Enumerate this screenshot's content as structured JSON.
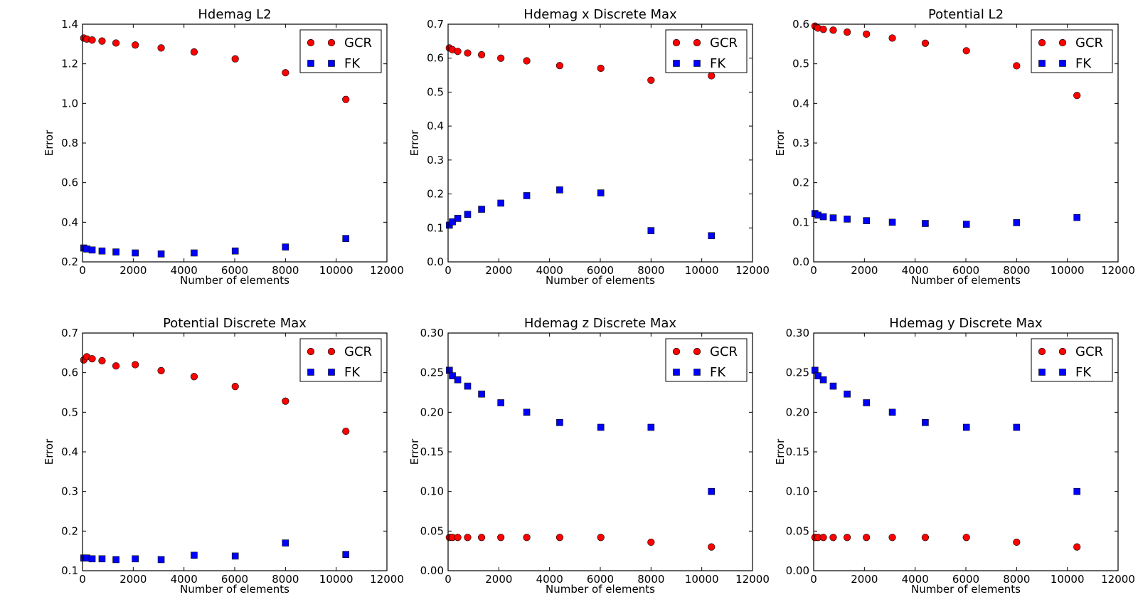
{
  "chart_data": [
    {
      "type": "scatter",
      "title": "Hdemag L2",
      "xlabel": "Number of elements",
      "ylabel": "Error",
      "xlim": [
        0,
        12000
      ],
      "ylim": [
        0.2,
        1.4
      ],
      "xticks": [
        0,
        2000,
        4000,
        6000,
        8000,
        10000,
        12000
      ],
      "yticks": [
        0.2,
        0.4,
        0.6,
        0.8,
        1.0,
        1.2,
        1.4
      ],
      "yprec": 1,
      "legend": "top-right",
      "grid": false,
      "series": [
        {
          "name": "GCR",
          "marker": "circle",
          "color": "#ff0000",
          "x": [
            50,
            170,
            380,
            770,
            1320,
            2080,
            3100,
            4400,
            6020,
            8000,
            10380
          ],
          "y": [
            1.33,
            1.325,
            1.32,
            1.315,
            1.305,
            1.295,
            1.28,
            1.26,
            1.225,
            1.155,
            1.02
          ]
        },
        {
          "name": "FK",
          "marker": "square",
          "color": "#0000ff",
          "x": [
            50,
            170,
            380,
            770,
            1320,
            2080,
            3100,
            4400,
            6020,
            8000,
            10380
          ],
          "y": [
            0.27,
            0.265,
            0.26,
            0.255,
            0.25,
            0.245,
            0.24,
            0.245,
            0.255,
            0.275,
            0.318
          ]
        }
      ]
    },
    {
      "type": "scatter",
      "title": "Hdemag x Discrete Max",
      "xlabel": "Number of elements",
      "ylabel": "Error",
      "xlim": [
        0,
        12000
      ],
      "ylim": [
        0.0,
        0.7
      ],
      "xticks": [
        0,
        2000,
        4000,
        6000,
        8000,
        10000,
        12000
      ],
      "yticks": [
        0.0,
        0.1,
        0.2,
        0.3,
        0.4,
        0.5,
        0.6,
        0.7
      ],
      "yprec": 1,
      "legend": "top-right",
      "grid": false,
      "series": [
        {
          "name": "GCR",
          "marker": "circle",
          "color": "#ff0000",
          "x": [
            50,
            170,
            380,
            770,
            1320,
            2080,
            3100,
            4400,
            6020,
            8000,
            10380
          ],
          "y": [
            0.63,
            0.625,
            0.62,
            0.615,
            0.61,
            0.6,
            0.592,
            0.578,
            0.57,
            0.535,
            0.548
          ]
        },
        {
          "name": "FK",
          "marker": "square",
          "color": "#0000ff",
          "x": [
            50,
            170,
            380,
            770,
            1320,
            2080,
            3100,
            4400,
            6020,
            8000,
            10380
          ],
          "y": [
            0.108,
            0.118,
            0.128,
            0.14,
            0.155,
            0.173,
            0.195,
            0.212,
            0.203,
            0.092,
            0.077
          ]
        }
      ]
    },
    {
      "type": "scatter",
      "title": "Potential L2",
      "xlabel": "Number of elements",
      "ylabel": "Error",
      "xlim": [
        0,
        12000
      ],
      "ylim": [
        0.0,
        0.6
      ],
      "xticks": [
        0,
        2000,
        4000,
        6000,
        8000,
        10000,
        12000
      ],
      "yticks": [
        0.0,
        0.1,
        0.2,
        0.3,
        0.4,
        0.5,
        0.6
      ],
      "yprec": 1,
      "legend": "top-right",
      "grid": false,
      "series": [
        {
          "name": "GCR",
          "marker": "circle",
          "color": "#ff0000",
          "x": [
            50,
            170,
            380,
            770,
            1320,
            2080,
            3100,
            4400,
            6020,
            8000,
            10380
          ],
          "y": [
            0.595,
            0.59,
            0.587,
            0.585,
            0.58,
            0.575,
            0.565,
            0.552,
            0.533,
            0.495,
            0.42
          ]
        },
        {
          "name": "FK",
          "marker": "square",
          "color": "#0000ff",
          "x": [
            50,
            170,
            380,
            770,
            1320,
            2080,
            3100,
            4400,
            6020,
            8000,
            10380
          ],
          "y": [
            0.122,
            0.118,
            0.114,
            0.111,
            0.108,
            0.104,
            0.1,
            0.097,
            0.095,
            0.099,
            0.112
          ]
        }
      ]
    },
    {
      "type": "scatter",
      "title": "Potential Discrete Max",
      "xlabel": "Number of elements",
      "ylabel": "Error",
      "xlim": [
        0,
        12000
      ],
      "ylim": [
        0.1,
        0.7
      ],
      "xticks": [
        0,
        2000,
        4000,
        6000,
        8000,
        10000,
        12000
      ],
      "yticks": [
        0.1,
        0.2,
        0.3,
        0.4,
        0.5,
        0.6,
        0.7
      ],
      "yprec": 1,
      "legend": "top-right",
      "grid": false,
      "series": [
        {
          "name": "GCR",
          "marker": "circle",
          "color": "#ff0000",
          "x": [
            50,
            170,
            380,
            770,
            1320,
            2080,
            3100,
            4400,
            6020,
            8000,
            10380
          ],
          "y": [
            0.632,
            0.64,
            0.635,
            0.63,
            0.617,
            0.62,
            0.605,
            0.59,
            0.565,
            0.528,
            0.452
          ]
        },
        {
          "name": "FK",
          "marker": "square",
          "color": "#0000ff",
          "x": [
            50,
            170,
            380,
            770,
            1320,
            2080,
            3100,
            4400,
            6020,
            8000,
            10380
          ],
          "y": [
            0.132,
            0.132,
            0.13,
            0.13,
            0.128,
            0.13,
            0.128,
            0.139,
            0.137,
            0.17,
            0.141
          ]
        }
      ]
    },
    {
      "type": "scatter",
      "title": "Hdemag z Discrete Max",
      "xlabel": "Number of elements",
      "ylabel": "Error",
      "xlim": [
        0,
        12000
      ],
      "ylim": [
        0.0,
        0.3
      ],
      "xticks": [
        0,
        2000,
        4000,
        6000,
        8000,
        10000,
        12000
      ],
      "yticks": [
        0.0,
        0.05,
        0.1,
        0.15,
        0.2,
        0.25,
        0.3
      ],
      "yprec": 2,
      "legend": "top-right",
      "grid": false,
      "series": [
        {
          "name": "GCR",
          "marker": "circle",
          "color": "#ff0000",
          "x": [
            50,
            170,
            380,
            770,
            1320,
            2080,
            3100,
            4400,
            6020,
            8000,
            10380
          ],
          "y": [
            0.042,
            0.042,
            0.042,
            0.042,
            0.042,
            0.042,
            0.042,
            0.042,
            0.042,
            0.036,
            0.03
          ]
        },
        {
          "name": "FK",
          "marker": "square",
          "color": "#0000ff",
          "x": [
            50,
            170,
            380,
            770,
            1320,
            2080,
            3100,
            4400,
            6020,
            8000,
            10380
          ],
          "y": [
            0.253,
            0.246,
            0.241,
            0.233,
            0.223,
            0.212,
            0.2,
            0.187,
            0.181,
            0.181,
            0.1
          ]
        }
      ]
    },
    {
      "type": "scatter",
      "title": "Hdemag y Discrete Max",
      "xlabel": "Number of elements",
      "ylabel": "Error",
      "xlim": [
        0,
        12000
      ],
      "ylim": [
        0.0,
        0.3
      ],
      "xticks": [
        0,
        2000,
        4000,
        6000,
        8000,
        10000,
        12000
      ],
      "yticks": [
        0.0,
        0.05,
        0.1,
        0.15,
        0.2,
        0.25,
        0.3
      ],
      "yprec": 2,
      "legend": "top-right",
      "grid": false,
      "series": [
        {
          "name": "GCR",
          "marker": "circle",
          "color": "#ff0000",
          "x": [
            50,
            170,
            380,
            770,
            1320,
            2080,
            3100,
            4400,
            6020,
            8000,
            10380
          ],
          "y": [
            0.042,
            0.042,
            0.042,
            0.042,
            0.042,
            0.042,
            0.042,
            0.042,
            0.042,
            0.036,
            0.03
          ]
        },
        {
          "name": "FK",
          "marker": "square",
          "color": "#0000ff",
          "x": [
            50,
            170,
            380,
            770,
            1320,
            2080,
            3100,
            4400,
            6020,
            8000,
            10380
          ],
          "y": [
            0.253,
            0.246,
            0.241,
            0.233,
            0.223,
            0.212,
            0.2,
            0.187,
            0.181,
            0.181,
            0.1
          ]
        }
      ]
    }
  ]
}
